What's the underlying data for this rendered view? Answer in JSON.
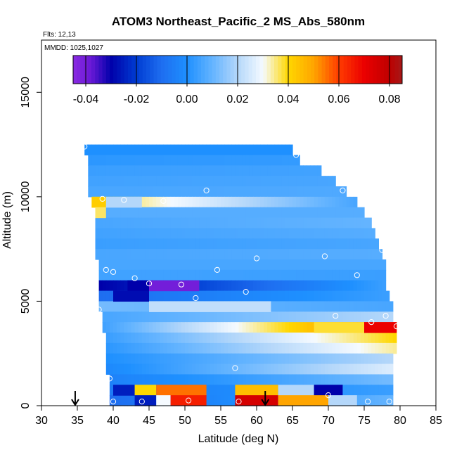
{
  "chart_data": {
    "type": "heatmap",
    "title": "ATOM3 Northeast_Pacific_2 MS_Abs_580nm",
    "flights_label": "Flts: 12,13",
    "mmdd_label": "MMDD: 1025,1027",
    "xlabel": "Latitude (deg N)",
    "ylabel": "Altitude (m)",
    "xlim": [
      30,
      85
    ],
    "ylim": [
      0,
      17500
    ],
    "x_ticks": [
      "30",
      "35",
      "40",
      "45",
      "50",
      "55",
      "60",
      "65",
      "70",
      "75",
      "80",
      "85"
    ],
    "y_ticks": [
      "0",
      "5000",
      "10000",
      "15000"
    ],
    "colorbar": {
      "range": [
        -0.045,
        0.085
      ],
      "tick_values": [
        -0.04,
        -0.02,
        0.0,
        0.02,
        0.04,
        0.06,
        0.08
      ],
      "tick_labels": [
        "-0.04",
        "-0.02",
        "0.00",
        "0.02",
        "0.04",
        "0.06",
        "0.08"
      ]
    },
    "layers": [
      {
        "alt_min": 12000,
        "alt_max": 12500,
        "lat_min": 36,
        "lat_max": 65,
        "start": 0.0,
        "end": 0.0
      },
      {
        "alt_min": 11500,
        "alt_max": 12000,
        "lat_min": 36.5,
        "lat_max": 66,
        "start": 0.002,
        "end": 0.003
      },
      {
        "alt_min": 11000,
        "alt_max": 11500,
        "lat_min": 36.5,
        "lat_max": 69,
        "start": 0.004,
        "end": 0.005
      },
      {
        "alt_min": 10500,
        "alt_max": 11000,
        "lat_min": 36.5,
        "lat_max": 71,
        "start": 0.005,
        "end": 0.006
      },
      {
        "alt_min": 10000,
        "alt_max": 10500,
        "lat_min": 36.5,
        "lat_max": 72.5,
        "start": 0.006,
        "end": 0.007
      },
      {
        "alt_min": 9500,
        "alt_max": 10000,
        "lat_min": 37,
        "lat_max": 74,
        "start": 0.04,
        "end": 0.006
      },
      {
        "alt_min": 9000,
        "alt_max": 9500,
        "lat_min": 37.5,
        "lat_max": 75,
        "start": 0.008,
        "end": 0.008
      },
      {
        "alt_min": 8500,
        "alt_max": 9000,
        "lat_min": 37.5,
        "lat_max": 76,
        "start": 0.006,
        "end": 0.01
      },
      {
        "alt_min": 8000,
        "alt_max": 8500,
        "lat_min": 37.5,
        "lat_max": 76.5,
        "start": 0.005,
        "end": 0.008
      },
      {
        "alt_min": 7500,
        "alt_max": 8000,
        "lat_min": 37.5,
        "lat_max": 77,
        "start": 0.004,
        "end": 0.006
      },
      {
        "alt_min": 7000,
        "alt_max": 7500,
        "lat_min": 37.5,
        "lat_max": 77.5,
        "start": 0.006,
        "end": 0.008
      },
      {
        "alt_min": 6500,
        "alt_max": 7000,
        "lat_min": 38,
        "lat_max": 78,
        "start": 0.006,
        "end": 0.006
      },
      {
        "alt_min": 6000,
        "alt_max": 6500,
        "lat_min": 38,
        "lat_max": 78,
        "start": 0.005,
        "end": 0.004
      },
      {
        "alt_min": 5500,
        "alt_max": 6000,
        "lat_min": 38,
        "lat_max": 78,
        "start": -0.03,
        "end": 0.004
      },
      {
        "alt_min": 5000,
        "alt_max": 5500,
        "lat_min": 38,
        "lat_max": 78.5,
        "start": -0.01,
        "end": 0.004
      },
      {
        "alt_min": 4500,
        "alt_max": 5000,
        "lat_min": 38,
        "lat_max": 79,
        "start": 0.012,
        "end": 0.006
      },
      {
        "alt_min": 4000,
        "alt_max": 4500,
        "lat_min": 38.5,
        "lat_max": 79,
        "start": 0.006,
        "end": 0.02
      },
      {
        "alt_min": 3500,
        "alt_max": 4000,
        "lat_min": 38.5,
        "lat_max": 79.5,
        "start": 0.005,
        "end": 0.06
      },
      {
        "alt_min": 3000,
        "alt_max": 3500,
        "lat_min": 39,
        "lat_max": 79.5,
        "start": 0.004,
        "end": 0.04
      },
      {
        "alt_min": 2500,
        "alt_max": 3000,
        "lat_min": 39,
        "lat_max": 79.5,
        "start": 0.002,
        "end": 0.034
      },
      {
        "alt_min": 2000,
        "alt_max": 2500,
        "lat_min": 39,
        "lat_max": 79,
        "start": 0.0,
        "end": 0.02
      },
      {
        "alt_min": 1500,
        "alt_max": 2000,
        "lat_min": 39,
        "lat_max": 79,
        "start": -0.002,
        "end": 0.026
      },
      {
        "alt_min": 1000,
        "alt_max": 1500,
        "lat_min": 39.5,
        "lat_max": 79,
        "start": -0.004,
        "end": 0.012
      },
      {
        "alt_min": 500,
        "alt_max": 1000,
        "lat_min": 39.5,
        "lat_max": 79,
        "start": -0.006,
        "end": 0.004
      },
      {
        "alt_min": 0,
        "alt_max": 500,
        "lat_min": 39.5,
        "lat_max": 79,
        "start": -0.01,
        "end": 0.01
      }
    ],
    "anomalies": [
      {
        "alt_min": 9500,
        "alt_max": 10000,
        "lat_min": 37,
        "lat_max": 39,
        "value": 0.042
      },
      {
        "alt_min": 9500,
        "alt_max": 10000,
        "lat_min": 39,
        "lat_max": 44,
        "value": 0.02
      },
      {
        "alt_min": 9000,
        "alt_max": 9500,
        "lat_min": 37.5,
        "lat_max": 39,
        "value": 0.036
      },
      {
        "alt_min": 5500,
        "alt_max": 6000,
        "lat_min": 42,
        "lat_max": 45,
        "value": -0.03
      },
      {
        "alt_min": 5500,
        "alt_max": 6000,
        "lat_min": 45,
        "lat_max": 52,
        "value": -0.04
      },
      {
        "alt_min": 5000,
        "alt_max": 5500,
        "lat_min": 40,
        "lat_max": 45,
        "value": -0.028
      },
      {
        "alt_min": 4500,
        "alt_max": 5000,
        "lat_min": 45,
        "lat_max": 62,
        "value": 0.022
      },
      {
        "alt_min": 3500,
        "alt_max": 4000,
        "lat_min": 68,
        "lat_max": 75,
        "value": 0.038
      },
      {
        "alt_min": 3500,
        "alt_max": 4000,
        "lat_min": 75,
        "lat_max": 79.5,
        "value": 0.07
      },
      {
        "alt_min": 500,
        "alt_max": 1000,
        "lat_min": 40,
        "lat_max": 43,
        "value": -0.025
      },
      {
        "alt_min": 500,
        "alt_max": 1000,
        "lat_min": 43,
        "lat_max": 46,
        "value": 0.04
      },
      {
        "alt_min": 500,
        "alt_max": 1000,
        "lat_min": 46,
        "lat_max": 53,
        "value": 0.055
      },
      {
        "alt_min": 500,
        "alt_max": 1000,
        "lat_min": 57,
        "lat_max": 63,
        "value": 0.045
      },
      {
        "alt_min": 500,
        "alt_max": 1000,
        "lat_min": 63,
        "lat_max": 68,
        "value": 0.02
      },
      {
        "alt_min": 500,
        "alt_max": 1000,
        "lat_min": 68,
        "lat_max": 72,
        "value": -0.03
      },
      {
        "alt_min": 0,
        "alt_max": 500,
        "lat_min": 43,
        "lat_max": 46,
        "value": -0.025
      },
      {
        "alt_min": 0,
        "alt_max": 500,
        "lat_min": 46,
        "lat_max": 48,
        "value": 0.03
      },
      {
        "alt_min": 0,
        "alt_max": 500,
        "lat_min": 48,
        "lat_max": 53,
        "value": 0.065
      },
      {
        "alt_min": 0,
        "alt_max": 500,
        "lat_min": 57,
        "lat_max": 63,
        "value": 0.075
      },
      {
        "alt_min": 0,
        "alt_max": 500,
        "lat_min": 63,
        "lat_max": 70,
        "value": 0.05
      },
      {
        "alt_min": 0,
        "alt_max": 500,
        "lat_min": 70,
        "lat_max": 74,
        "value": 0.02
      }
    ],
    "sample_points": [
      {
        "lat": 36,
        "alt": 12400
      },
      {
        "lat": 65.5,
        "alt": 12000
      },
      {
        "lat": 72,
        "alt": 10300
      },
      {
        "lat": 53,
        "alt": 10300
      },
      {
        "lat": 38.5,
        "alt": 9900
      },
      {
        "lat": 41.5,
        "alt": 9850
      },
      {
        "lat": 47,
        "alt": 9800
      },
      {
        "lat": 37,
        "alt": 7200
      },
      {
        "lat": 60,
        "alt": 7050
      },
      {
        "lat": 69.5,
        "alt": 7150
      },
      {
        "lat": 77.5,
        "alt": 7450
      },
      {
        "lat": 39,
        "alt": 6500
      },
      {
        "lat": 40,
        "alt": 6400
      },
      {
        "lat": 54.5,
        "alt": 6500
      },
      {
        "lat": 74,
        "alt": 6250
      },
      {
        "lat": 43,
        "alt": 6100
      },
      {
        "lat": 45,
        "alt": 5850
      },
      {
        "lat": 49.5,
        "alt": 5800
      },
      {
        "lat": 58.5,
        "alt": 5450
      },
      {
        "lat": 51.5,
        "alt": 5150
      },
      {
        "lat": 38,
        "alt": 4600
      },
      {
        "lat": 71,
        "alt": 4300
      },
      {
        "lat": 78,
        "alt": 4300
      },
      {
        "lat": 76,
        "alt": 4000
      },
      {
        "lat": 79.5,
        "alt": 3800
      },
      {
        "lat": 57,
        "alt": 1800
      },
      {
        "lat": 39.5,
        "alt": 1300
      },
      {
        "lat": 70,
        "alt": 500
      },
      {
        "lat": 50.5,
        "alt": 250
      },
      {
        "lat": 44,
        "alt": 200
      },
      {
        "lat": 40,
        "alt": 200
      },
      {
        "lat": 57.5,
        "alt": 200
      },
      {
        "lat": 75.5,
        "alt": 200
      },
      {
        "lat": 78.5,
        "alt": 200
      }
    ],
    "arrows_lat": [
      34.7,
      61.2
    ]
  }
}
